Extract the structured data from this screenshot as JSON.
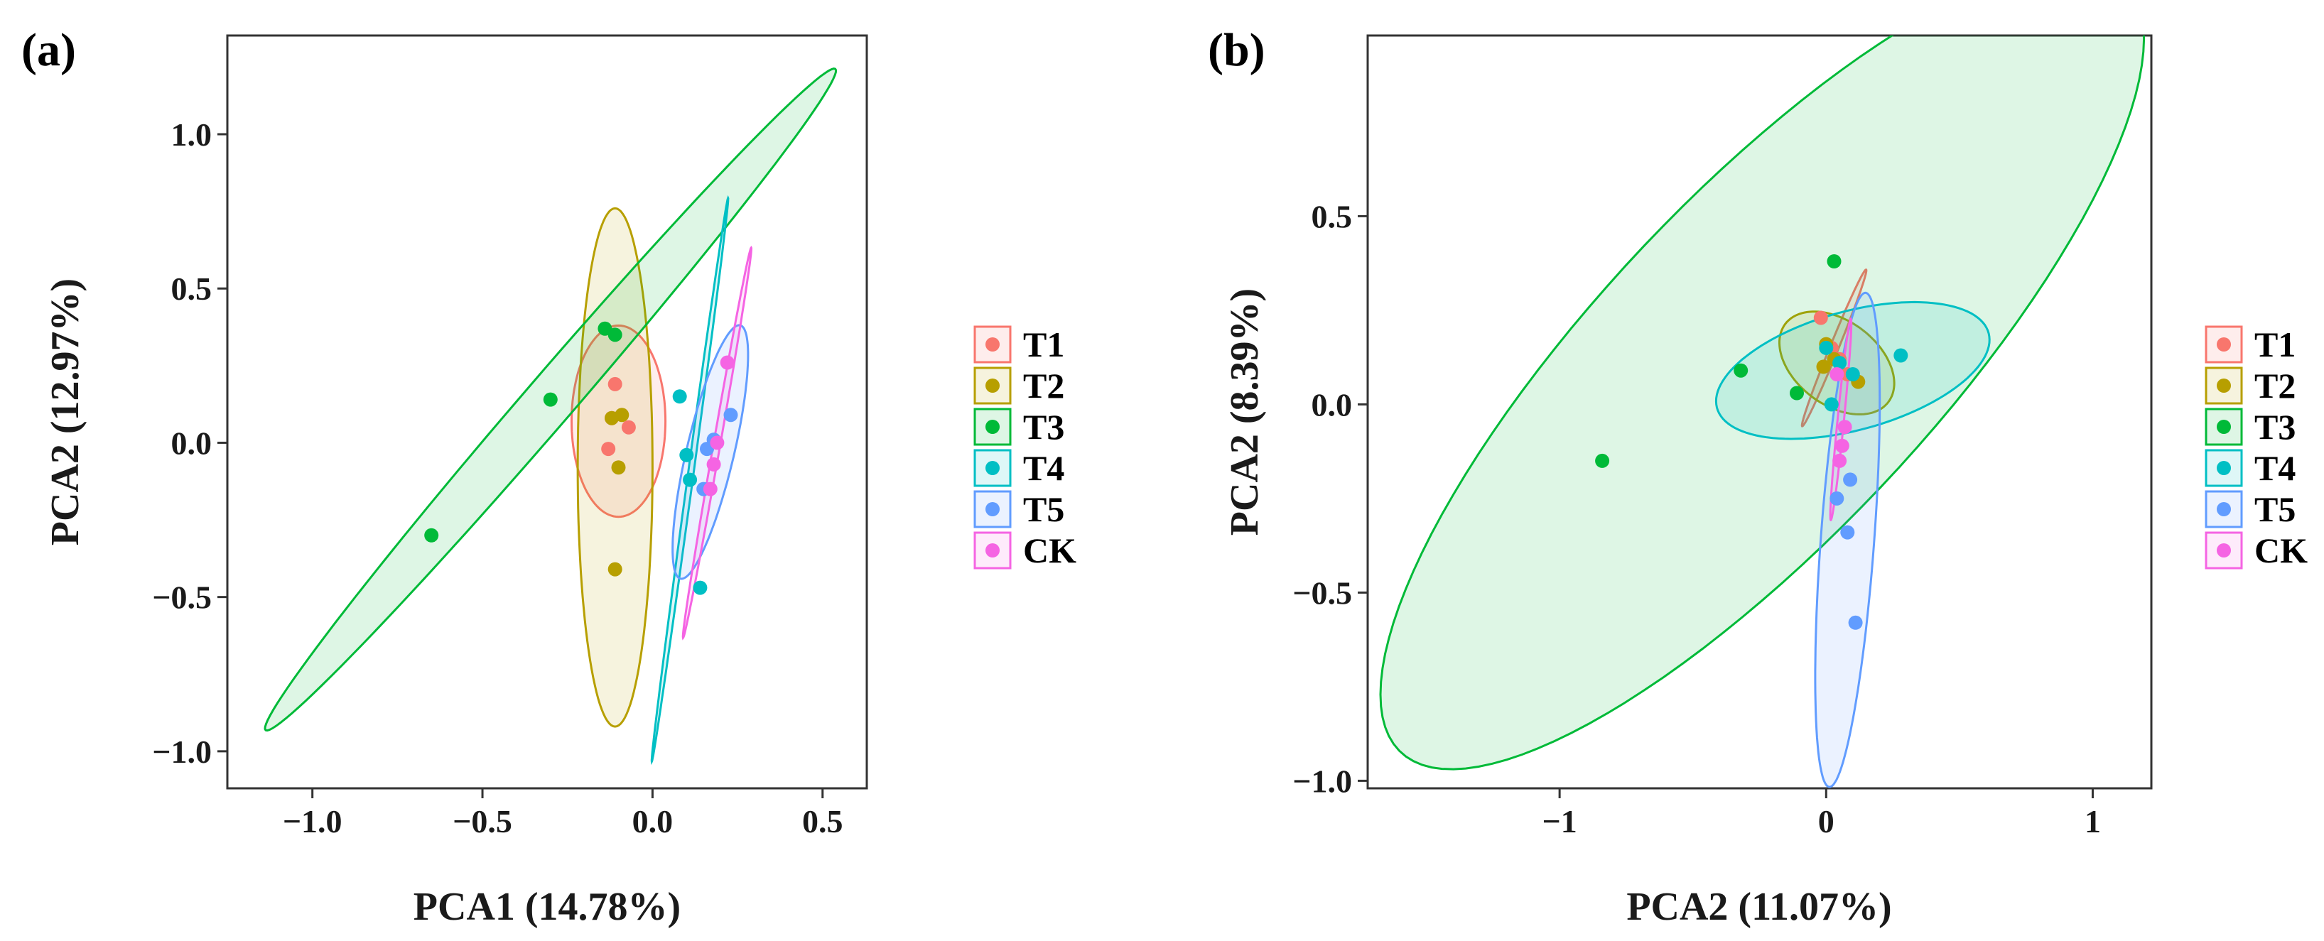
{
  "chart_data": [
    {
      "type": "scatter",
      "panel_label": "(a)",
      "xlabel": "PCA1 (14.78%)",
      "ylabel": "PCA2 (12.97%)",
      "xlim": [
        -1.25,
        0.63
      ],
      "ylim": [
        -1.12,
        1.32
      ],
      "xticks": [
        -1.0,
        -0.5,
        0.0,
        0.5
      ],
      "xtick_labels": [
        "−1.0",
        "−0.5",
        "0.0",
        "0.5"
      ],
      "yticks": [
        -1.0,
        -0.5,
        0.0,
        0.5,
        1.0
      ],
      "ytick_labels": [
        "−1.0",
        "−0.5",
        "0.0",
        "0.5",
        "1.0"
      ],
      "grid": false,
      "legend_position": "right",
      "series": [
        {
          "name": "T1",
          "color": "#F8766D",
          "points": [
            [
              -0.11,
              0.19
            ],
            [
              -0.12,
              0.08
            ],
            [
              -0.07,
              0.05
            ],
            [
              -0.13,
              -0.02
            ]
          ],
          "ellipse": {
            "cx": -0.1,
            "cy": 0.07,
            "rx": 0.138,
            "ry": 0.31,
            "angle": 0
          }
        },
        {
          "name": "T2",
          "color": "#B79F00",
          "points": [
            [
              -0.09,
              0.09
            ],
            [
              -0.1,
              -0.08
            ],
            [
              -0.11,
              -0.41
            ],
            [
              -0.12,
              0.08
            ]
          ],
          "ellipse": {
            "cx": -0.11,
            "cy": -0.08,
            "rx": 0.11,
            "ry": 0.84,
            "angle": 0
          }
        },
        {
          "name": "T3",
          "color": "#00BA38",
          "points": [
            [
              -0.14,
              0.37
            ],
            [
              -0.11,
              0.35
            ],
            [
              -0.3,
              0.14
            ],
            [
              -0.65,
              -0.3
            ]
          ],
          "ellipse": {
            "cx": -0.3,
            "cy": 0.14,
            "rx": 1.36,
            "ry": 0.075,
            "angle": 52
          }
        },
        {
          "name": "T4",
          "color": "#00BFC4",
          "points": [
            [
              0.08,
              0.15
            ],
            [
              0.1,
              -0.04
            ],
            [
              0.11,
              -0.12
            ],
            [
              0.14,
              -0.47
            ]
          ],
          "ellipse": {
            "cx": 0.11,
            "cy": -0.12,
            "rx": 0.92,
            "ry": 0.008,
            "angle": 83
          }
        },
        {
          "name": "T5",
          "color": "#619CFF",
          "points": [
            [
              0.23,
              0.09
            ],
            [
              0.18,
              0.01
            ],
            [
              0.16,
              -0.02
            ],
            [
              0.15,
              -0.15
            ]
          ],
          "ellipse": {
            "cx": 0.17,
            "cy": -0.03,
            "rx": 0.42,
            "ry": 0.07,
            "angle": 78
          }
        },
        {
          "name": "CK",
          "color": "#F564E3",
          "points": [
            [
              0.22,
              0.26
            ],
            [
              0.19,
              0.0
            ],
            [
              0.18,
              -0.07
            ],
            [
              0.17,
              -0.15
            ]
          ],
          "ellipse": {
            "cx": 0.19,
            "cy": 0.0,
            "rx": 0.64,
            "ry": 0.01,
            "angle": 81
          }
        }
      ]
    },
    {
      "type": "scatter",
      "panel_label": "(b)",
      "xlabel": "PCA2 (11.07%)",
      "ylabel": "PCA2 (8.39%)",
      "xlim": [
        -1.72,
        1.22
      ],
      "ylim": [
        -1.02,
        0.98
      ],
      "xticks": [
        -1,
        0,
        1
      ],
      "xtick_labels": [
        "−1",
        "0",
        "1"
      ],
      "yticks": [
        -1.0,
        -0.5,
        0.0,
        0.5
      ],
      "ytick_labels": [
        "−1.0",
        "−0.5",
        "0.0",
        "0.5"
      ],
      "grid": false,
      "legend_position": "right",
      "series": [
        {
          "name": "T1",
          "color": "#F8766D",
          "points": [
            [
              -0.02,
              0.23
            ],
            [
              0.02,
              0.15
            ],
            [
              0.05,
              0.12
            ],
            [
              0.08,
              0.08
            ]
          ],
          "ellipse": {
            "cx": 0.03,
            "cy": 0.15,
            "rx": 0.24,
            "ry": 0.015,
            "angle": 60
          }
        },
        {
          "name": "T2",
          "color": "#B79F00",
          "points": [
            [
              0.0,
              0.16
            ],
            [
              0.03,
              0.12
            ],
            [
              0.12,
              0.06
            ],
            [
              -0.01,
              0.1
            ]
          ],
          "ellipse": {
            "cx": 0.04,
            "cy": 0.11,
            "rx": 0.225,
            "ry": 0.12,
            "angle": -20
          }
        },
        {
          "name": "T3",
          "color": "#00BA38",
          "points": [
            [
              0.03,
              0.38
            ],
            [
              -0.32,
              0.09
            ],
            [
              -0.11,
              0.03
            ],
            [
              -0.84,
              -0.15
            ]
          ],
          "ellipse": {
            "cx": -0.24,
            "cy": 0.1,
            "rx": 1.71,
            "ry": 0.52,
            "angle": 35
          }
        },
        {
          "name": "T4",
          "color": "#00BFC4",
          "points": [
            [
              0.0,
              0.15
            ],
            [
              0.05,
              0.11
            ],
            [
              0.28,
              0.13
            ],
            [
              0.1,
              0.08
            ],
            [
              0.02,
              0.0
            ]
          ],
          "ellipse": {
            "cx": 0.1,
            "cy": 0.09,
            "rx": 0.52,
            "ry": 0.16,
            "angle": 10
          }
        },
        {
          "name": "T5",
          "color": "#619CFF",
          "points": [
            [
              0.04,
              -0.25
            ],
            [
              0.09,
              -0.2
            ],
            [
              0.08,
              -0.34
            ],
            [
              0.11,
              -0.58
            ]
          ],
          "ellipse": {
            "cx": 0.08,
            "cy": -0.36,
            "rx": 0.66,
            "ry": 0.1,
            "angle": 84
          }
        },
        {
          "name": "CK",
          "color": "#F564E3",
          "points": [
            [
              0.07,
              -0.06
            ],
            [
              0.06,
              -0.11
            ],
            [
              0.05,
              -0.15
            ],
            [
              0.04,
              0.08
            ]
          ],
          "ellipse": {
            "cx": 0.055,
            "cy": -0.04,
            "rx": 0.27,
            "ry": 0.012,
            "angle": 82
          }
        }
      ]
    }
  ]
}
